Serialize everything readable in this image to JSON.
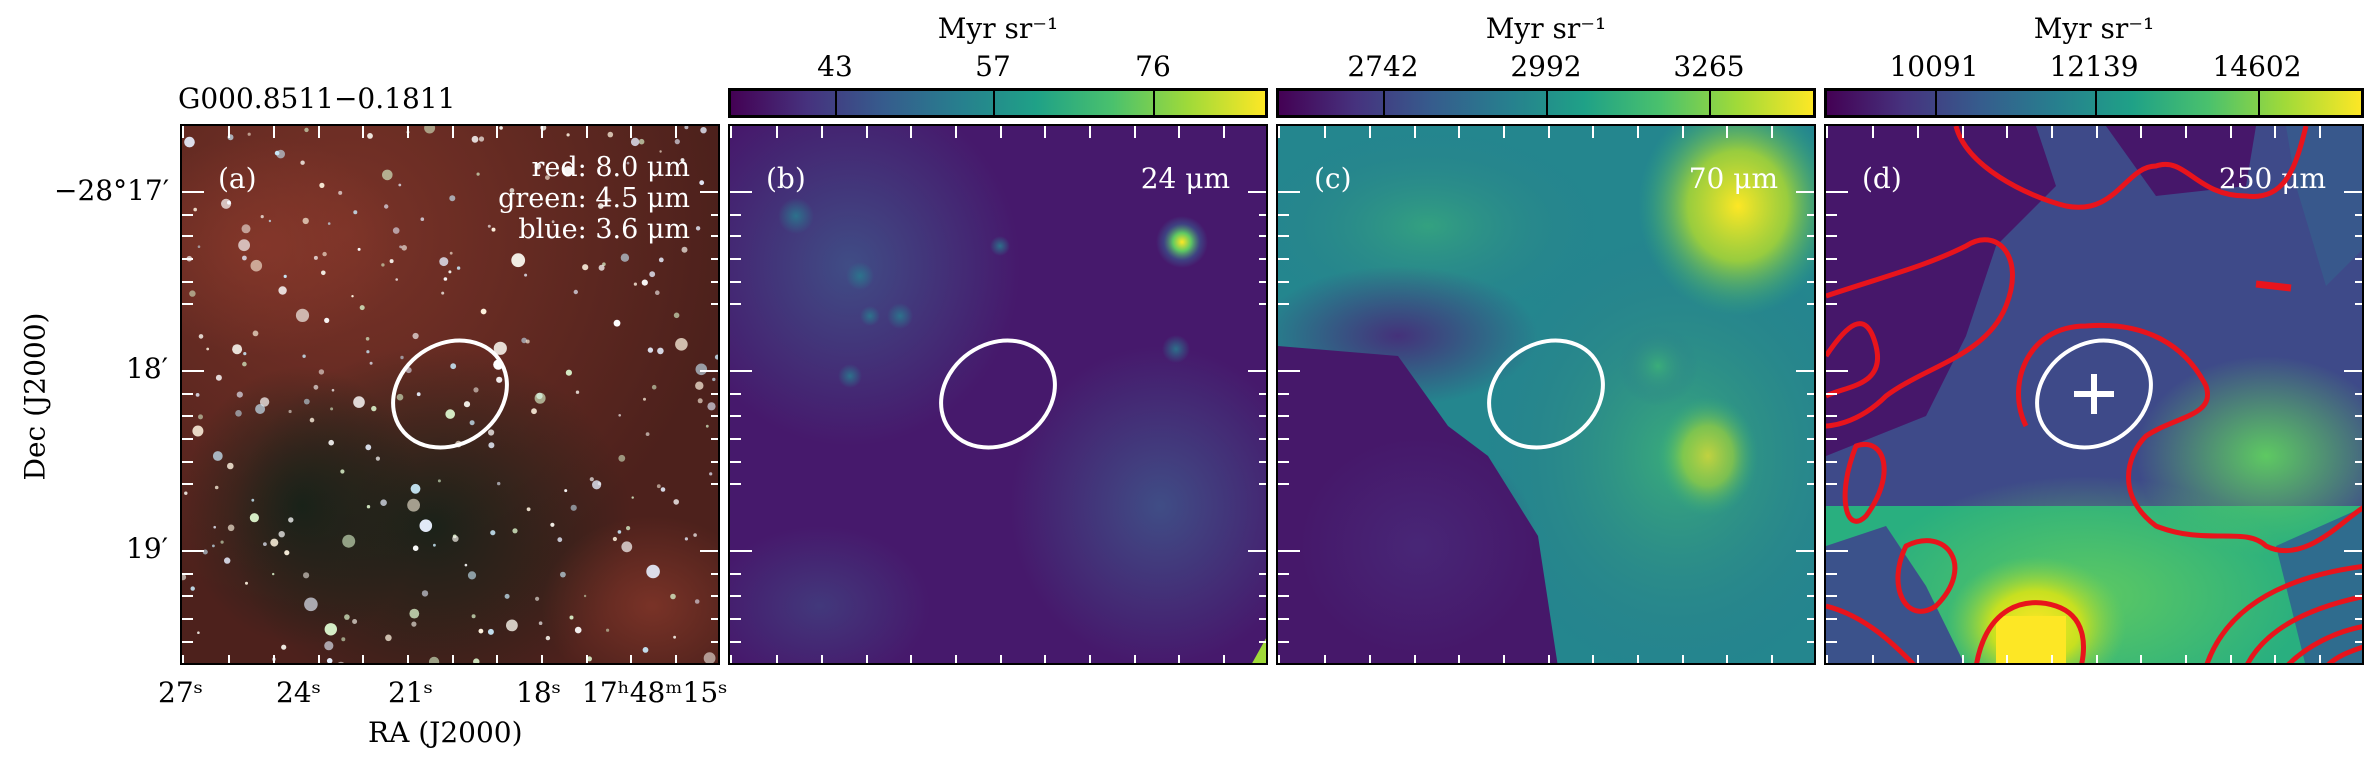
{
  "source_name": "G000.8511−0.1811",
  "colorbar_unit": "Myr sr⁻¹",
  "panels": [
    {
      "label": "(a)",
      "rgb_legend": [
        "red: 8.0 μm",
        "green: 4.5 μm",
        "blue: 3.6 μm"
      ]
    },
    {
      "label": "(b)",
      "wavelength": "24 μm",
      "colorbar_ticks": [
        "43",
        "57",
        "76"
      ]
    },
    {
      "label": "(c)",
      "wavelength": "70 μm",
      "colorbar_ticks": [
        "2742",
        "2992",
        "3265"
      ]
    },
    {
      "label": "(d)",
      "wavelength": "250 μm",
      "colorbar_ticks": [
        "10091",
        "12139",
        "14602"
      ]
    }
  ],
  "axes": {
    "ylabel": "Dec (J2000)",
    "xlabel": "RA (J2000)",
    "dec_ticks": [
      "−28°17′",
      "18′",
      "19′"
    ],
    "ra_ticks": [
      "27ˢ",
      "24ˢ",
      "21ˢ",
      "18ˢ",
      "17ʰ48ᵐ15ˢ"
    ]
  },
  "colors": {
    "ellipse": "#ffffff",
    "contour": "#e8141c",
    "viridis_low": "#440154",
    "viridis_high": "#fde725"
  }
}
